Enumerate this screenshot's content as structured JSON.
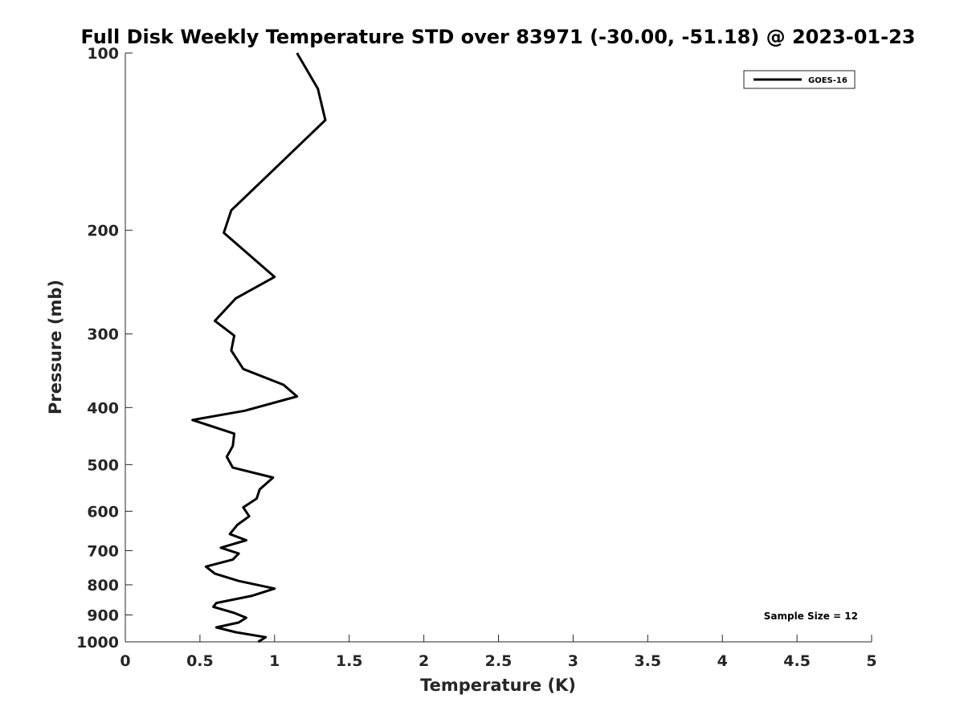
{
  "chart_data": {
    "type": "line",
    "title": "Full Disk Weekly Temperature STD over 83971 (-30.00, -51.18) @ 2023-01-23",
    "xlabel": "Temperature (K)",
    "ylabel": "Pressure (mb)",
    "xlim": [
      0,
      5
    ],
    "ylim": [
      100,
      1000
    ],
    "y_scale": "log",
    "y_reversed": true,
    "x_ticks": [
      0,
      0.5,
      1,
      1.5,
      2,
      2.5,
      3,
      3.5,
      4,
      4.5,
      5
    ],
    "x_tick_labels": [
      "0",
      "0.5",
      "1",
      "1.5",
      "2",
      "2.5",
      "3",
      "3.5",
      "4",
      "4.5",
      "5"
    ],
    "y_ticks": [
      100,
      200,
      300,
      400,
      500,
      600,
      700,
      800,
      900,
      1000
    ],
    "y_tick_labels": [
      "100",
      "200",
      "300",
      "400",
      "500",
      "600",
      "700",
      "800",
      "900",
      "1000"
    ],
    "grid": false,
    "legend_position": "top-right",
    "series": [
      {
        "name": "GOES-16",
        "color": "#000000",
        "x": [
          1.15,
          1.29,
          1.34,
          0.97,
          0.71,
          0.66,
          1.0,
          0.74,
          0.6,
          0.73,
          0.71,
          0.79,
          1.06,
          1.15,
          0.8,
          0.45,
          0.73,
          0.72,
          0.68,
          0.72,
          0.99,
          0.9,
          0.88,
          0.79,
          0.83,
          0.75,
          0.7,
          0.81,
          0.64,
          0.76,
          0.72,
          0.54,
          0.6,
          0.76,
          1.0,
          0.85,
          0.61,
          0.59,
          0.73,
          0.81,
          0.76,
          0.61,
          0.74,
          0.94,
          0.89
        ],
        "y": [
          100,
          115,
          130,
          160,
          185,
          202,
          240,
          261,
          285,
          302,
          320,
          344,
          366,
          383,
          405,
          420,
          443,
          465,
          485,
          506,
          526,
          551,
          571,
          591,
          612,
          633,
          656,
          672,
          692,
          708,
          725,
          745,
          766,
          788,
          812,
          835,
          859,
          872,
          893,
          910,
          927,
          945,
          963,
          982,
          1000
        ]
      }
    ],
    "annotations": [
      "Sample Size = 12"
    ]
  }
}
